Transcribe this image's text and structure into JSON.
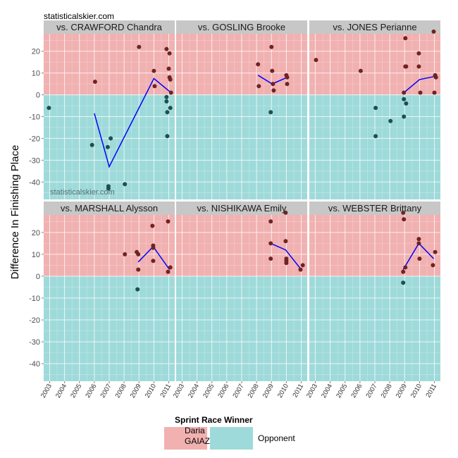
{
  "credit": "statisticalskier.com",
  "watermark": "statisticalskier.com",
  "chart_data": {
    "type": "scatter",
    "ylabel": "Difference In Finishing Place",
    "xlabel": "",
    "xlim": [
      2002.6,
      2011.4
    ],
    "ylim": [
      -48,
      28
    ],
    "x_ticks": [
      "2003",
      "2004",
      "2005",
      "2006",
      "2007",
      "2008",
      "2009",
      "2010",
      "2011"
    ],
    "y_ticks": [
      -40,
      -30,
      -20,
      -10,
      0,
      10,
      20
    ],
    "colors": {
      "gaiazova_region": "#f1b1b1",
      "opponent_region": "#9fdada",
      "gaiazova_point": "#702323",
      "opponent_point": "#1d4f4f",
      "trend_line": "#0000ff",
      "strip_bg": "#c7c7c7",
      "grid": "#ffffff"
    },
    "legend": {
      "title": "Sprint Race Winner",
      "items": [
        {
          "label_line1": "Daria",
          "label_line2": "GAIAZOVA",
          "color": "#f1b1b1"
        },
        {
          "label_line1": "Opponent",
          "label_line2": "",
          "color": "#9fdada"
        }
      ]
    },
    "panels": [
      {
        "title": "vs. CRAWFORD Chandra",
        "points": [
          [
            2002.95,
            -6
          ],
          [
            2005.85,
            -23
          ],
          [
            2006.05,
            6
          ],
          [
            2006.9,
            -24
          ],
          [
            2006.95,
            -42
          ],
          [
            2006.95,
            -43
          ],
          [
            2007.1,
            -20
          ],
          [
            2008.05,
            -41
          ],
          [
            2009.0,
            22
          ],
          [
            2010.0,
            11
          ],
          [
            2010.05,
            4
          ],
          [
            2010.85,
            21
          ],
          [
            2010.85,
            -1
          ],
          [
            2010.85,
            -3
          ],
          [
            2010.9,
            -8
          ],
          [
            2010.9,
            -19
          ],
          [
            2011.0,
            12
          ],
          [
            2011.05,
            19
          ],
          [
            2011.05,
            8
          ],
          [
            2011.1,
            7
          ],
          [
            2011.1,
            -6
          ],
          [
            2011.15,
            1
          ]
        ],
        "trend": [
          [
            2006.0,
            -8.5
          ],
          [
            2007.0,
            -33
          ],
          [
            2010.0,
            7.5
          ],
          [
            2011.15,
            1
          ]
        ]
      },
      {
        "title": "vs. GOSLING Brooke",
        "points": [
          [
            2008.1,
            14
          ],
          [
            2008.15,
            4
          ],
          [
            2008.95,
            -8
          ],
          [
            2009.0,
            22
          ],
          [
            2009.05,
            11
          ],
          [
            2009.1,
            5
          ],
          [
            2009.15,
            2
          ],
          [
            2010.0,
            9
          ],
          [
            2010.05,
            8
          ],
          [
            2010.05,
            5
          ]
        ],
        "trend": [
          [
            2008.1,
            9
          ],
          [
            2009.05,
            5
          ],
          [
            2010.05,
            8
          ]
        ]
      },
      {
        "title": "vs. JONES Perianne",
        "points": [
          [
            2003.05,
            16
          ],
          [
            2006.05,
            11
          ],
          [
            2007.05,
            -6
          ],
          [
            2007.05,
            -19
          ],
          [
            2008.05,
            -12
          ],
          [
            2008.95,
            1
          ],
          [
            2008.95,
            -2
          ],
          [
            2008.95,
            -10
          ],
          [
            2009.05,
            26
          ],
          [
            2009.05,
            13
          ],
          [
            2009.1,
            13
          ],
          [
            2009.1,
            -4
          ],
          [
            2009.95,
            19
          ],
          [
            2009.95,
            13
          ],
          [
            2010.05,
            1
          ],
          [
            2010.95,
            29
          ],
          [
            2011.0,
            1
          ],
          [
            2011.05,
            9
          ],
          [
            2011.1,
            8
          ]
        ],
        "trend": [
          [
            2008.95,
            1
          ],
          [
            2010.0,
            7
          ],
          [
            2011.05,
            8.5
          ]
        ]
      },
      {
        "title": "vs. MARSHALL Alysson",
        "points": [
          [
            2008.05,
            10
          ],
          [
            2008.85,
            11
          ],
          [
            2008.95,
            3
          ],
          [
            2008.95,
            10
          ],
          [
            2008.9,
            -6
          ],
          [
            2009.9,
            23
          ],
          [
            2009.95,
            14
          ],
          [
            2009.95,
            13
          ],
          [
            2009.95,
            7
          ],
          [
            2010.95,
            25
          ],
          [
            2010.95,
            2
          ],
          [
            2011.1,
            4
          ]
        ],
        "trend": [
          [
            2008.95,
            6.5
          ],
          [
            2009.95,
            13.5
          ],
          [
            2011.05,
            3
          ]
        ]
      },
      {
        "title": "vs. NISHIKAWA Emily",
        "points": [
          [
            2008.95,
            25
          ],
          [
            2008.95,
            15
          ],
          [
            2008.95,
            8
          ],
          [
            2009.95,
            29
          ],
          [
            2009.95,
            16
          ],
          [
            2010.0,
            8
          ],
          [
            2010.0,
            7
          ],
          [
            2010.0,
            6
          ],
          [
            2010.95,
            3
          ],
          [
            2011.1,
            5
          ]
        ],
        "trend": [
          [
            2008.95,
            15
          ],
          [
            2009.95,
            12
          ],
          [
            2011.0,
            3
          ]
        ]
      },
      {
        "title": "vs. WEBSTER Brittany",
        "points": [
          [
            2008.9,
            29
          ],
          [
            2008.95,
            26
          ],
          [
            2008.9,
            2
          ],
          [
            2008.9,
            -3
          ],
          [
            2009.05,
            4
          ],
          [
            2009.95,
            17
          ],
          [
            2009.95,
            15
          ],
          [
            2010.0,
            8
          ],
          [
            2010.9,
            5
          ],
          [
            2011.05,
            11
          ]
        ],
        "trend": [
          [
            2008.9,
            3
          ],
          [
            2009.95,
            15
          ],
          [
            2010.95,
            8
          ]
        ]
      }
    ]
  }
}
